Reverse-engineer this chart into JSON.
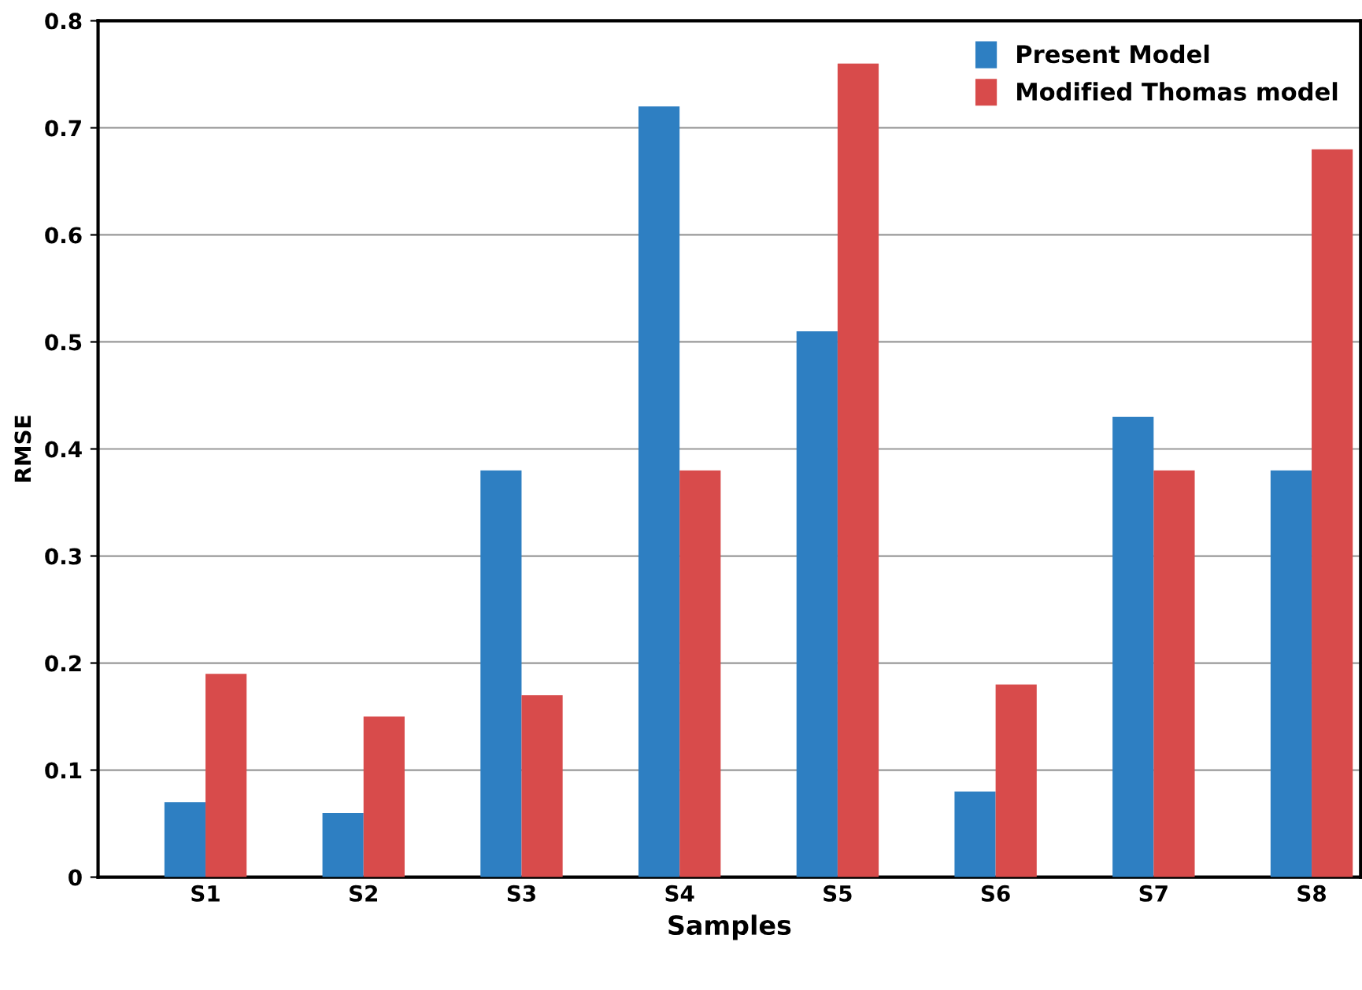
{
  "chart_data": {
    "type": "bar",
    "xlabel": "Samples",
    "ylabel": "RMSE",
    "categories": [
      "S1",
      "S2",
      "S3",
      "S4",
      "S5",
      "S6",
      "S7",
      "S8"
    ],
    "series": [
      {
        "name": "Present Model",
        "color": "#2e7fc2",
        "values": [
          0.07,
          0.06,
          0.38,
          0.72,
          0.51,
          0.08,
          0.43,
          0.38
        ]
      },
      {
        "name": "Modified Thomas model",
        "color": "#d84b4b",
        "values": [
          0.19,
          0.15,
          0.17,
          0.38,
          0.76,
          0.18,
          0.38,
          0.68
        ]
      }
    ],
    "ylim": [
      0,
      0.8
    ],
    "yticks": [
      0,
      0.1,
      0.2,
      0.3,
      0.4,
      0.5,
      0.6,
      0.7,
      0.8
    ],
    "grid": "y",
    "legend": "top right"
  }
}
